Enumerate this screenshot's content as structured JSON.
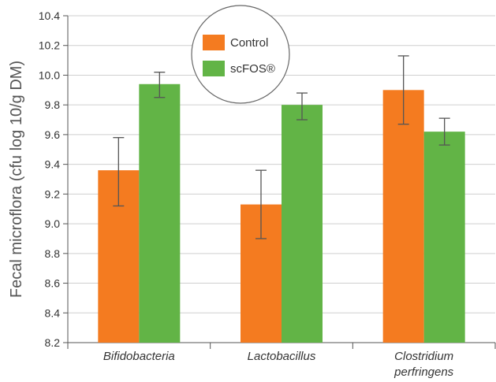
{
  "chart_data": {
    "type": "bar",
    "ylabel": "Fecal microflora (cfu log 10/g DM)",
    "ylim": [
      8.2,
      10.4
    ],
    "ytick_step": 0.2,
    "yticks": [
      "8.2",
      "8.4",
      "8.6",
      "8.8",
      "9.0",
      "9.2",
      "9.4",
      "9.6",
      "9.8",
      "10.0",
      "10.2",
      "10.4"
    ],
    "grid": true,
    "legend_position": "top-center",
    "categories": [
      {
        "lines": [
          "Bifidobacteria"
        ]
      },
      {
        "lines": [
          "Lactobacillus"
        ]
      },
      {
        "lines": [
          "Clostridium",
          "perfringens"
        ]
      }
    ],
    "series": [
      {
        "name": "Control",
        "color": "#f47b20",
        "values": [
          9.36,
          9.13,
          9.9
        ],
        "error_low": [
          9.12,
          8.9,
          9.67
        ],
        "error_high": [
          9.58,
          9.36,
          10.13
        ]
      },
      {
        "name": "scFOS®",
        "color": "#62b446",
        "values": [
          9.94,
          9.8,
          9.62
        ],
        "error_low": [
          9.85,
          9.7,
          9.53
        ],
        "error_high": [
          10.02,
          9.88,
          9.71
        ]
      }
    ]
  }
}
